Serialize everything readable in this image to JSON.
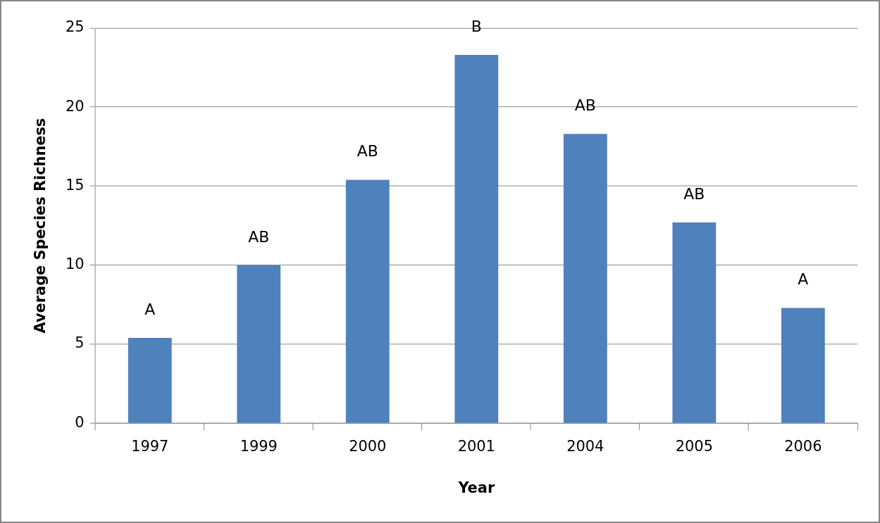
{
  "chart_data": {
    "type": "bar",
    "xlabel": "Year",
    "ylabel": "Average Species Richness",
    "categories": [
      "1997",
      "1999",
      "2000",
      "2001",
      "2004",
      "2005",
      "2006"
    ],
    "values": [
      5.4,
      10.0,
      15.4,
      23.3,
      18.3,
      12.7,
      7.3
    ],
    "color": "#4f81bd",
    "ylim": [
      0,
      25
    ],
    "yticks": [
      0,
      5,
      10,
      15,
      20,
      25
    ],
    "grid": "y",
    "legend": false,
    "annotations": [
      {
        "text": "A",
        "x": "1997",
        "y": 5.4
      },
      {
        "text": "AB",
        "x": "1999",
        "y": 10.0
      },
      {
        "text": "AB",
        "x": "2000",
        "y": 15.4
      },
      {
        "text": "B",
        "x": "2001",
        "y": 23.3
      },
      {
        "text": "AB",
        "x": "2004",
        "y": 18.3
      },
      {
        "text": "AB",
        "x": "2005",
        "y": 12.7
      },
      {
        "text": "A",
        "x": "2006",
        "y": 7.3
      }
    ]
  }
}
